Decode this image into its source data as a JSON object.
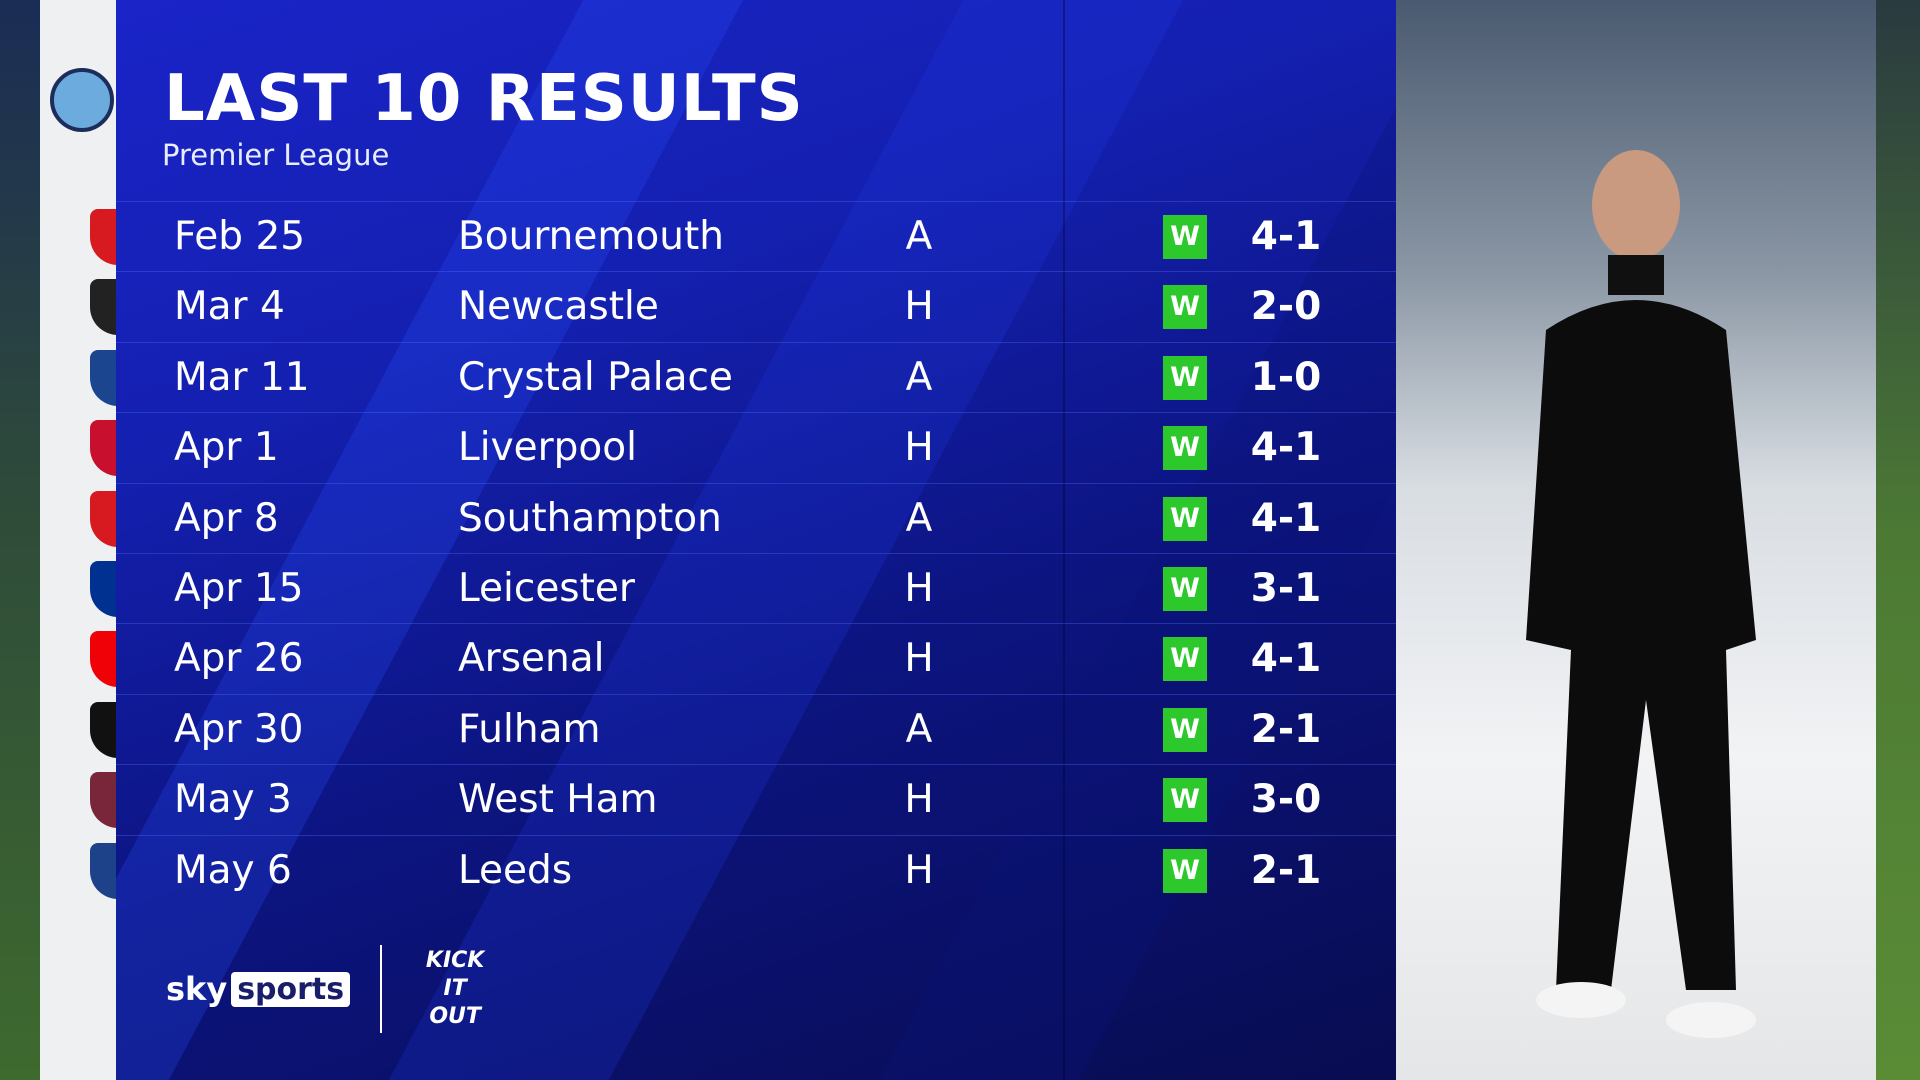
{
  "header": {
    "title": "LAST 10 RESULTS",
    "subtitle": "Premier League"
  },
  "team_crest": "manchester-city-crest",
  "colors": {
    "panel": "#1420b0",
    "win": "#2cc82c",
    "text": "#ffffff"
  },
  "results": [
    {
      "date": "Feb 25",
      "opponent": "Bournemouth",
      "venue": "A",
      "result": "W",
      "score": "4-1",
      "crest_color": "#d71920"
    },
    {
      "date": "Mar 4",
      "opponent": "Newcastle",
      "venue": "H",
      "result": "W",
      "score": "2-0",
      "crest_color": "#222222"
    },
    {
      "date": "Mar 11",
      "opponent": "Crystal Palace",
      "venue": "A",
      "result": "W",
      "score": "1-0",
      "crest_color": "#1b458f"
    },
    {
      "date": "Apr 1",
      "opponent": "Liverpool",
      "venue": "H",
      "result": "W",
      "score": "4-1",
      "crest_color": "#c8102e"
    },
    {
      "date": "Apr 8",
      "opponent": "Southampton",
      "venue": "A",
      "result": "W",
      "score": "4-1",
      "crest_color": "#d71920"
    },
    {
      "date": "Apr 15",
      "opponent": "Leicester",
      "venue": "H",
      "result": "W",
      "score": "3-1",
      "crest_color": "#003090"
    },
    {
      "date": "Apr 26",
      "opponent": "Arsenal",
      "venue": "H",
      "result": "W",
      "score": "4-1",
      "crest_color": "#ef0107"
    },
    {
      "date": "Apr 30",
      "opponent": "Fulham",
      "venue": "A",
      "result": "W",
      "score": "2-1",
      "crest_color": "#111111"
    },
    {
      "date": "May 3",
      "opponent": "West Ham",
      "venue": "H",
      "result": "W",
      "score": "3-0",
      "crest_color": "#7a263a"
    },
    {
      "date": "May 6",
      "opponent": "Leeds",
      "venue": "H",
      "result": "W",
      "score": "2-1",
      "crest_color": "#1d428a"
    }
  ],
  "footer": {
    "sky": "sky",
    "sports": "sports",
    "kick_it_out": "KICK IT OUT"
  }
}
